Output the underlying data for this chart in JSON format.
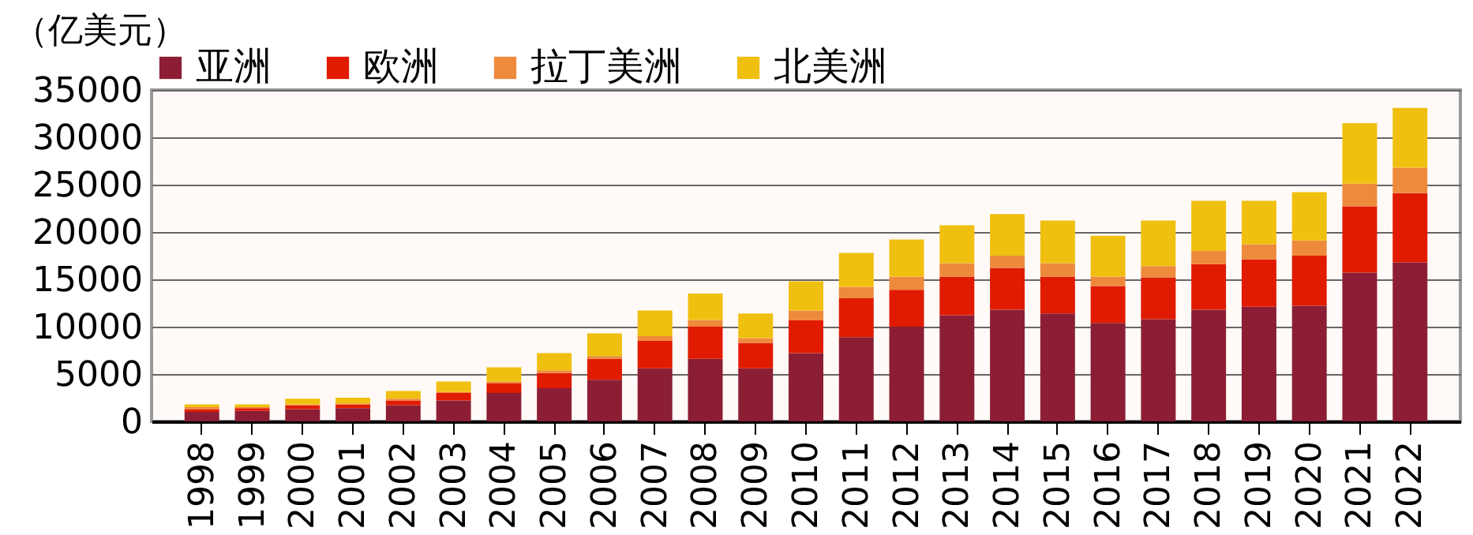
{
  "chart_data": {
    "type": "bar",
    "stacked": true,
    "ylabel": "（亿美元）",
    "categories": [
      "1998",
      "1999",
      "2000",
      "2001",
      "2002",
      "2003",
      "2004",
      "2005",
      "2006",
      "2007",
      "2008",
      "2009",
      "2010",
      "2011",
      "2012",
      "2013",
      "2014",
      "2015",
      "2016",
      "2017",
      "2018",
      "2019",
      "2020",
      "2021",
      "2022"
    ],
    "series": [
      {
        "name": "亚洲",
        "color": "#8b1e35",
        "values": [
          1000,
          1100,
          1300,
          1400,
          1700,
          2200,
          3000,
          3500,
          4400,
          5600,
          6600,
          5600,
          7200,
          8900,
          10000,
          11200,
          11800,
          11400,
          10400,
          10800,
          11800,
          12100,
          12200,
          15700,
          16800
        ]
      },
      {
        "name": "欧洲",
        "color": "#e01b00",
        "values": [
          300,
          300,
          400,
          400,
          500,
          800,
          1000,
          1600,
          2200,
          2900,
          3400,
          2700,
          3500,
          4100,
          3900,
          4100,
          4400,
          3900,
          3900,
          4400,
          4800,
          5000,
          5300,
          7000,
          7300
        ]
      },
      {
        "name": "拉丁美洲",
        "color": "#ee8a3c",
        "values": [
          200,
          100,
          100,
          100,
          200,
          100,
          200,
          300,
          300,
          500,
          700,
          500,
          1000,
          1200,
          1400,
          1400,
          1300,
          1400,
          1000,
          1200,
          1400,
          1600,
          1600,
          2400,
          2700
        ]
      },
      {
        "name": "北美洲",
        "color": "#f0c010",
        "values": [
          300,
          300,
          600,
          600,
          800,
          1100,
          1500,
          1800,
          2400,
          2700,
          2800,
          2600,
          3100,
          3600,
          3900,
          4000,
          4400,
          4500,
          4300,
          4800,
          5300,
          4600,
          5100,
          6400,
          6300
        ]
      }
    ],
    "ylim": [
      0,
      35000
    ],
    "yticks": [
      0,
      5000,
      10000,
      15000,
      20000,
      25000,
      30000,
      35000
    ],
    "grid": "y",
    "legend": "top"
  }
}
